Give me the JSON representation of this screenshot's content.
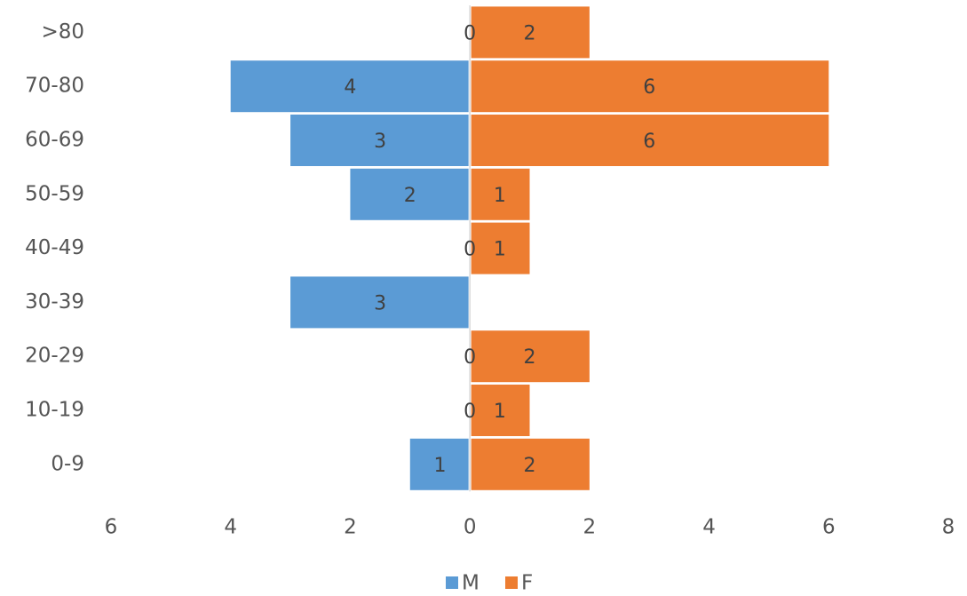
{
  "chart_data": {
    "type": "bar",
    "orientation": "horizontal",
    "categories": [
      ">80",
      "70-80",
      "60-69",
      "50-59",
      "40-49",
      "30-39",
      "20-29",
      "10-19",
      "0-9"
    ],
    "series": [
      {
        "name": "M",
        "color": "#5B9BD5",
        "values": [
          0,
          4,
          3,
          2,
          0,
          3,
          0,
          0,
          1
        ],
        "labels": [
          "0",
          "4",
          "3",
          "2",
          "0",
          "3",
          "0",
          "0",
          "1"
        ],
        "direction": "left"
      },
      {
        "name": "F",
        "color": "#ED7D31",
        "values": [
          2,
          6,
          6,
          1,
          1,
          null,
          2,
          1,
          2
        ],
        "labels": [
          "2",
          "6",
          "6",
          "1",
          "1",
          "",
          "2",
          "1",
          "2"
        ],
        "direction": "right"
      }
    ],
    "x_ticks": [
      "6",
      "4",
      "2",
      "0",
      "2",
      "4",
      "6",
      "8"
    ],
    "xlim": [
      -6,
      8
    ],
    "title": "",
    "xlabel": "",
    "ylabel": "",
    "grid": false,
    "legend": "bottom"
  }
}
